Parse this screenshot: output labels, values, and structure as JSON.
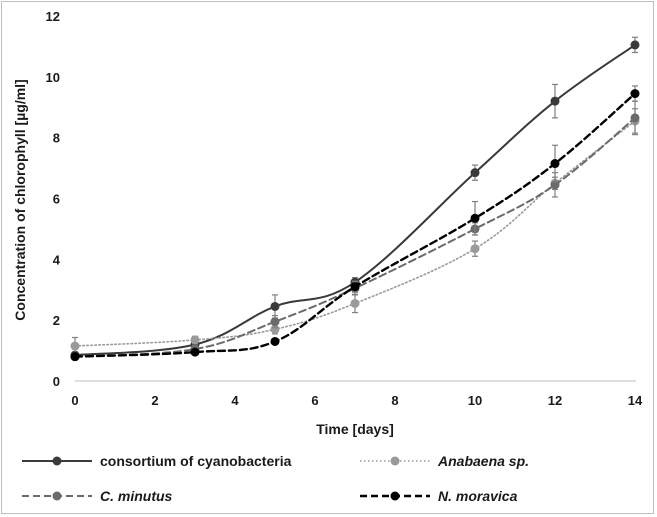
{
  "chart_data": {
    "type": "line",
    "title": "",
    "xlabel": "Time [days]",
    "ylabel": "Concentration of chlorophyll [µg/ml]",
    "xlim": [
      0,
      14
    ],
    "ylim": [
      0,
      12
    ],
    "x_ticks": [
      0,
      2,
      4,
      6,
      8,
      10,
      12,
      14
    ],
    "y_ticks": [
      0,
      2,
      4,
      6,
      8,
      10,
      12
    ],
    "grid": false,
    "legend_position": "bottom",
    "x": [
      0,
      3,
      5,
      7,
      10,
      12,
      14
    ],
    "series": [
      {
        "name": "consortium of cyanobacteria",
        "italic": false,
        "color": "#3a3a3a",
        "dash": "solid",
        "values": [
          0.85,
          1.2,
          2.45,
          3.25,
          6.85,
          9.2,
          11.05
        ],
        "errors": [
          0.1,
          0.1,
          0.38,
          0.15,
          0.25,
          0.55,
          0.25
        ]
      },
      {
        "name": "Anabaena sp.",
        "italic": true,
        "color": "#9a9a9a",
        "dash": "dotted",
        "values": [
          1.15,
          1.35,
          1.7,
          2.55,
          4.35,
          6.5,
          8.55
        ],
        "errors": [
          0.28,
          0.12,
          0.15,
          0.3,
          0.25,
          0.2,
          0.4
        ]
      },
      {
        "name": "C. minutus",
        "italic": true,
        "color": "#6b6b6b",
        "dash": "dashed",
        "values": [
          0.8,
          1.05,
          1.95,
          3.05,
          5.0,
          6.45,
          8.65
        ],
        "errors": [
          0.1,
          0.12,
          0.2,
          0.22,
          0.2,
          0.4,
          0.55
        ]
      },
      {
        "name": "N. moravica",
        "italic": true,
        "color": "#000000",
        "dash": "dashed",
        "values": [
          0.8,
          0.95,
          1.3,
          3.1,
          5.35,
          7.15,
          9.45
        ],
        "errors": [
          0.08,
          0.08,
          0.06,
          0.18,
          0.55,
          0.6,
          0.25
        ]
      }
    ]
  }
}
